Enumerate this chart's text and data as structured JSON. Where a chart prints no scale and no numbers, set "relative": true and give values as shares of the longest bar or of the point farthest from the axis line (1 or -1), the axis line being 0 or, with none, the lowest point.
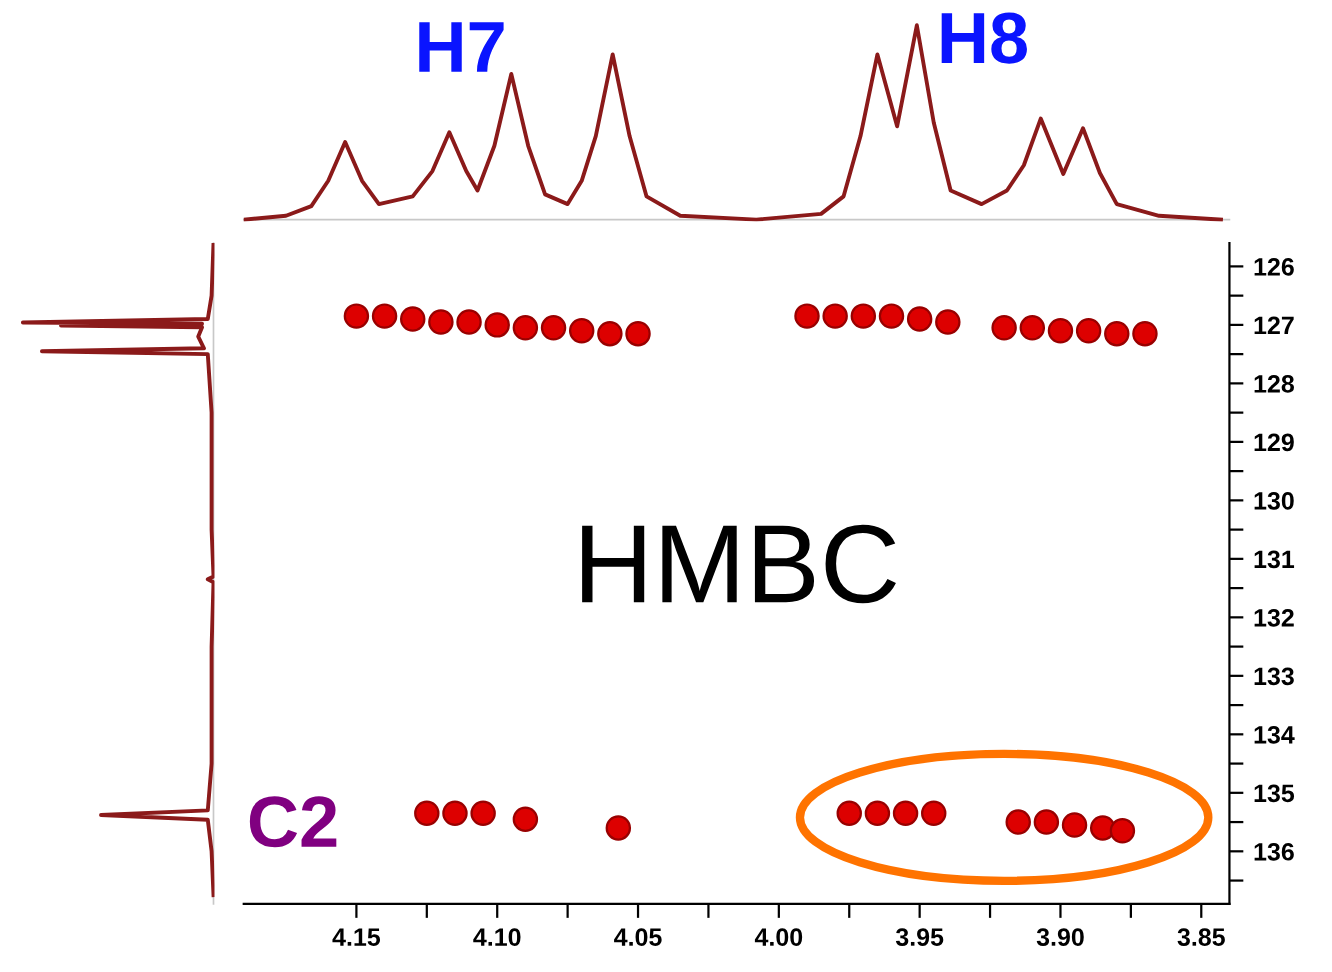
{
  "chart_data": [
    {
      "type": "line",
      "relative": true,
      "xlim": [
        4.19,
        3.84
      ],
      "tick_labels": false,
      "annotations": [
        "H7",
        "H8"
      ],
      "series": [
        {
          "color": "#8b1a1a",
          "x": [
            4.19,
            4.175,
            4.166,
            4.16,
            4.154,
            4.148,
            4.142,
            4.13,
            4.123,
            4.117,
            4.111,
            4.107,
            4.101,
            4.095,
            4.089,
            4.083,
            4.075,
            4.07,
            4.065,
            4.059,
            4.053,
            4.047,
            4.035,
            4.008,
            3.985,
            3.977,
            3.971,
            3.965,
            3.958,
            3.951,
            3.945,
            3.939,
            3.928,
            3.919,
            3.913,
            3.907,
            3.899,
            3.892,
            3.886,
            3.88,
            3.865,
            3.843
          ],
          "values": [
            0.0,
            0.02,
            0.07,
            0.2,
            0.4,
            0.2,
            0.08,
            0.12,
            0.25,
            0.45,
            0.25,
            0.15,
            0.38,
            0.75,
            0.38,
            0.13,
            0.08,
            0.2,
            0.43,
            0.85,
            0.43,
            0.12,
            0.02,
            0.0,
            0.03,
            0.12,
            0.43,
            0.85,
            0.48,
            1.0,
            0.5,
            0.15,
            0.08,
            0.15,
            0.28,
            0.52,
            0.235,
            0.47,
            0.24,
            0.08,
            0.02,
            0.0
          ]
        }
      ]
    },
    {
      "type": "line",
      "relative": true,
      "orientation": "horizontal",
      "ylim": [
        136.9,
        125.6
      ],
      "tick_labels": false,
      "series": [
        {
          "color": "#8b1a1a",
          "x": [
            125.6,
            126.5,
            126.9,
            126.96,
            126.98,
            127.01,
            127.04,
            127.2,
            127.4,
            127.45,
            127.5,
            128.5,
            129.5,
            130.5,
            131.3,
            131.35,
            131.4,
            132.5,
            133.5,
            134.5,
            135.3,
            135.38,
            135.46,
            136.0,
            136.75
          ],
          "values": [
            0.0,
            -0.01,
            -0.03,
            -1.0,
            -0.06,
            -0.8,
            -0.06,
            -0.08,
            -0.05,
            -0.9,
            -0.03,
            -0.01,
            -0.01,
            -0.01,
            0.0,
            -0.03,
            0.0,
            -0.01,
            -0.01,
            -0.01,
            -0.03,
            -0.59,
            -0.03,
            -0.01,
            0.0
          ]
        }
      ]
    },
    {
      "type": "scatter",
      "marker": "circle",
      "xlim": [
        4.19,
        3.84
      ],
      "ylim": [
        136.9,
        125.6
      ],
      "xticks": [
        4.15,
        {
          "value": 4.125,
          "label": null
        },
        {
          "value": 4.1,
          "label": "4.10"
        },
        {
          "value": 4.075,
          "label": null
        },
        4.05,
        {
          "value": 4.025,
          "label": null
        },
        {
          "value": 4.0,
          "label": "4.00"
        },
        {
          "value": 3.975,
          "label": null
        },
        3.95,
        {
          "value": 3.925,
          "label": null
        },
        {
          "value": 3.9,
          "label": "3.90"
        },
        {
          "value": 3.875,
          "label": null
        },
        3.85
      ],
      "yticks": [
        126,
        {
          "value": 126.5,
          "label": null
        },
        127,
        {
          "value": 127.5,
          "label": null
        },
        128,
        {
          "value": 128.5,
          "label": null
        },
        129,
        {
          "value": 129.5,
          "label": null
        },
        130,
        {
          "value": 130.5,
          "label": null
        },
        131,
        {
          "value": 131.5,
          "label": null
        },
        132,
        {
          "value": 132.5,
          "label": null
        },
        133,
        {
          "value": 133.5,
          "label": null
        },
        134,
        {
          "value": 134.5,
          "label": null
        },
        135,
        {
          "value": 135.5,
          "label": null
        },
        136,
        {
          "value": 136.5,
          "label": null
        }
      ],
      "annotations": [
        "HMBC",
        "C2"
      ],
      "series": [
        {
          "color": "#dd0000",
          "x": [
            4.15,
            4.14,
            4.13,
            4.12,
            4.11,
            4.1,
            4.09,
            4.08,
            4.07,
            4.06,
            4.05,
            3.99,
            3.98,
            3.97,
            3.96,
            3.95,
            3.94,
            3.92,
            3.91,
            3.9,
            3.89,
            3.88,
            3.87,
            4.125,
            4.115,
            4.105,
            4.09,
            4.057,
            3.975,
            3.965,
            3.955,
            3.945,
            3.915,
            3.905,
            3.895,
            3.885,
            3.878
          ],
          "values": [
            126.85,
            126.85,
            126.9,
            126.95,
            126.95,
            127.0,
            127.05,
            127.05,
            127.1,
            127.15,
            127.15,
            126.85,
            126.85,
            126.85,
            126.85,
            126.9,
            126.95,
            127.05,
            127.05,
            127.1,
            127.1,
            127.15,
            127.15,
            135.35,
            135.35,
            135.35,
            135.45,
            135.6,
            135.35,
            135.35,
            135.35,
            135.35,
            135.5,
            135.5,
            135.55,
            135.6,
            135.65
          ]
        }
      ]
    }
  ]
}
